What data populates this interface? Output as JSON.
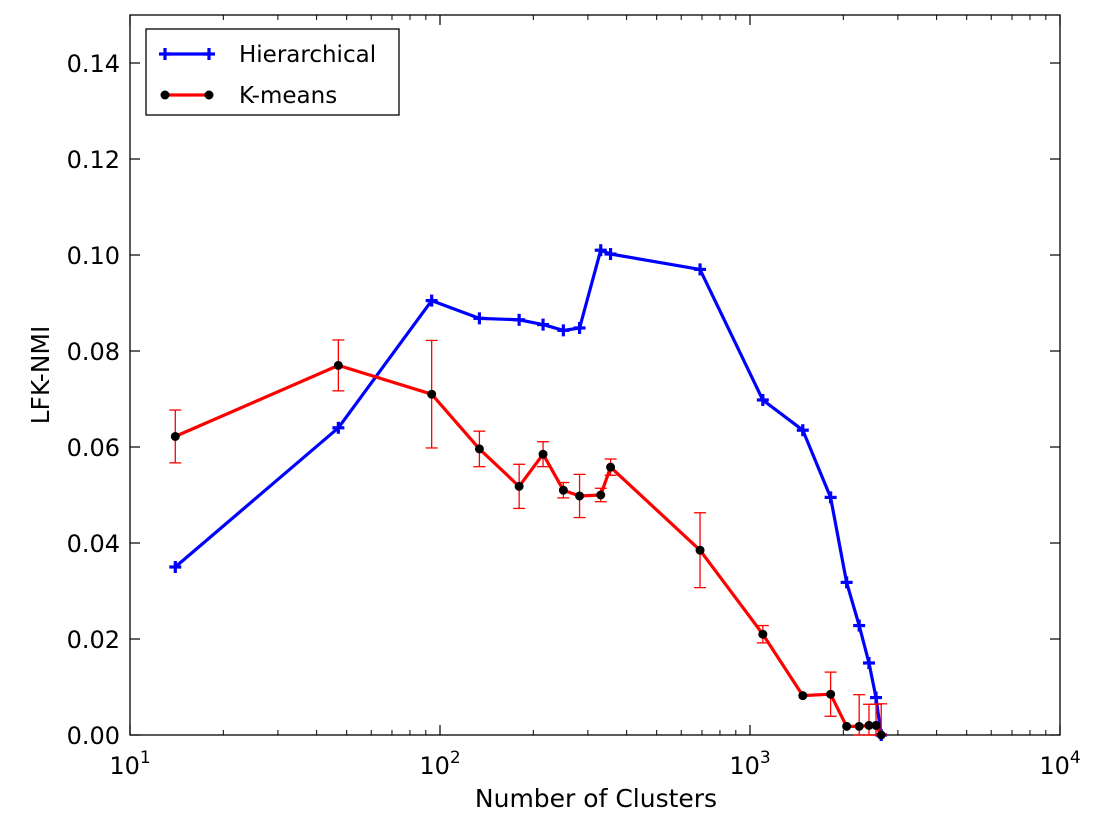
{
  "chart_data": {
    "type": "line",
    "title": "",
    "xlabel": "Number of Clusters",
    "ylabel": "LFK-NMI",
    "xscale": "log",
    "xlim": [
      10,
      10000
    ],
    "ylim": [
      0.0,
      0.15
    ],
    "grid": false,
    "legend_position": "top-left",
    "x_ticks": [
      {
        "value": 10,
        "base": "10",
        "exp": "1"
      },
      {
        "value": 100,
        "base": "10",
        "exp": "2"
      },
      {
        "value": 1000,
        "base": "10",
        "exp": "3"
      },
      {
        "value": 10000,
        "base": "10",
        "exp": "4"
      }
    ],
    "y_ticks": [
      {
        "value": 0.0,
        "label": "0.00"
      },
      {
        "value": 0.02,
        "label": "0.02"
      },
      {
        "value": 0.04,
        "label": "0.04"
      },
      {
        "value": 0.06,
        "label": "0.06"
      },
      {
        "value": 0.08,
        "label": "0.08"
      },
      {
        "value": 0.1,
        "label": "0.10"
      },
      {
        "value": 0.12,
        "label": "0.12"
      },
      {
        "value": 0.14,
        "label": "0.14"
      }
    ],
    "series": [
      {
        "name": "Hierarchical",
        "color": "#0000ff",
        "marker": "plus",
        "x": [
          14,
          47,
          94,
          134,
          180,
          215,
          250,
          282,
          330,
          355,
          690,
          1100,
          1480,
          1820,
          2050,
          2250,
          2420,
          2550,
          2650
        ],
        "y": [
          0.035,
          0.064,
          0.0905,
          0.0868,
          0.0865,
          0.0855,
          0.0843,
          0.0848,
          0.101,
          0.1002,
          0.097,
          0.0698,
          0.0635,
          0.0495,
          0.0318,
          0.0228,
          0.015,
          0.0078,
          0.0
        ]
      },
      {
        "name": "K-means",
        "color": "#ff0000",
        "marker": "circle",
        "x": [
          14,
          47,
          94,
          134,
          180,
          215,
          250,
          282,
          330,
          355,
          690,
          1100,
          1480,
          1820,
          2050,
          2250,
          2420,
          2550,
          2650
        ],
        "y": [
          0.0622,
          0.077,
          0.071,
          0.0596,
          0.0518,
          0.0585,
          0.051,
          0.0498,
          0.05,
          0.0558,
          0.0385,
          0.021,
          0.0082,
          0.0085,
          0.0018,
          0.0018,
          0.002,
          0.002,
          0.0
        ],
        "error": [
          0.0055,
          0.0053,
          0.0112,
          0.0037,
          0.0046,
          0.0026,
          0.0016,
          0.0045,
          0.0014,
          0.0017,
          0.0078,
          0.0018,
          0.0,
          0.0046,
          0.0,
          0.0066,
          0.0044,
          0.0044,
          0.0065
        ]
      }
    ]
  }
}
